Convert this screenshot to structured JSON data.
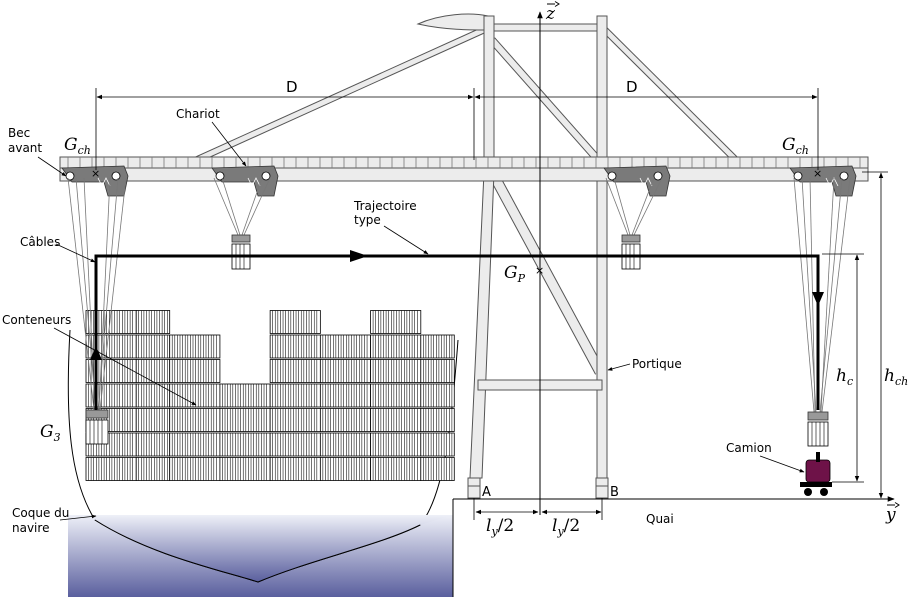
{
  "labels": {
    "bec_avant_1": "Bec",
    "bec_avant_2": "avant",
    "chariot": "Chariot",
    "cables": "Câbles",
    "conteneurs": "Conteneurs",
    "trajectoire_1": "Trajectoire",
    "trajectoire_2": "type",
    "portique": "Portique",
    "camion": "Camion",
    "coque_1": "Coque du",
    "coque_2": "navire",
    "quai": "Quai",
    "point_a": "A",
    "point_b": "B"
  },
  "symbols": {
    "z_axis": "z",
    "y_axis": "y",
    "g_ch_left": "G",
    "g_ch_left_sub": "ch",
    "g_ch_right": "G",
    "g_ch_right_sub": "ch",
    "g_p": "G",
    "g_p_sub": "P",
    "g_3": "G",
    "g_3_sub": "3",
    "h_c": "h",
    "h_c_sub": "c",
    "h_ch": "h",
    "h_ch_sub": "ch",
    "ly_left": "l",
    "ly_left_sub": "y",
    "ly_left_tail": "/2",
    "ly_right": "l",
    "ly_right_sub": "y",
    "ly_right_tail": "/2",
    "d_left": "D",
    "d_right": "D"
  },
  "colors": {
    "line": "#000000",
    "structure_fill": "#ececec",
    "structure_stroke": "#555555",
    "carriage_fill": "#7a7a7a",
    "sea_top": "#eef0f8",
    "sea_bottom": "#5a5f9e",
    "truck": "#6e1248"
  },
  "container_stacks": [
    {
      "cols": 3,
      "rows": 7
    },
    {
      "cols": 2,
      "rows": 7
    },
    {
      "cols": 3,
      "rows": 6
    },
    {
      "cols": 3,
      "rows": 4
    },
    {
      "cols": 3,
      "rows": 7
    },
    {
      "cols": 3,
      "rows": 6
    },
    {
      "cols": 3,
      "rows": 7
    },
    {
      "cols": 2,
      "rows": 6
    }
  ]
}
